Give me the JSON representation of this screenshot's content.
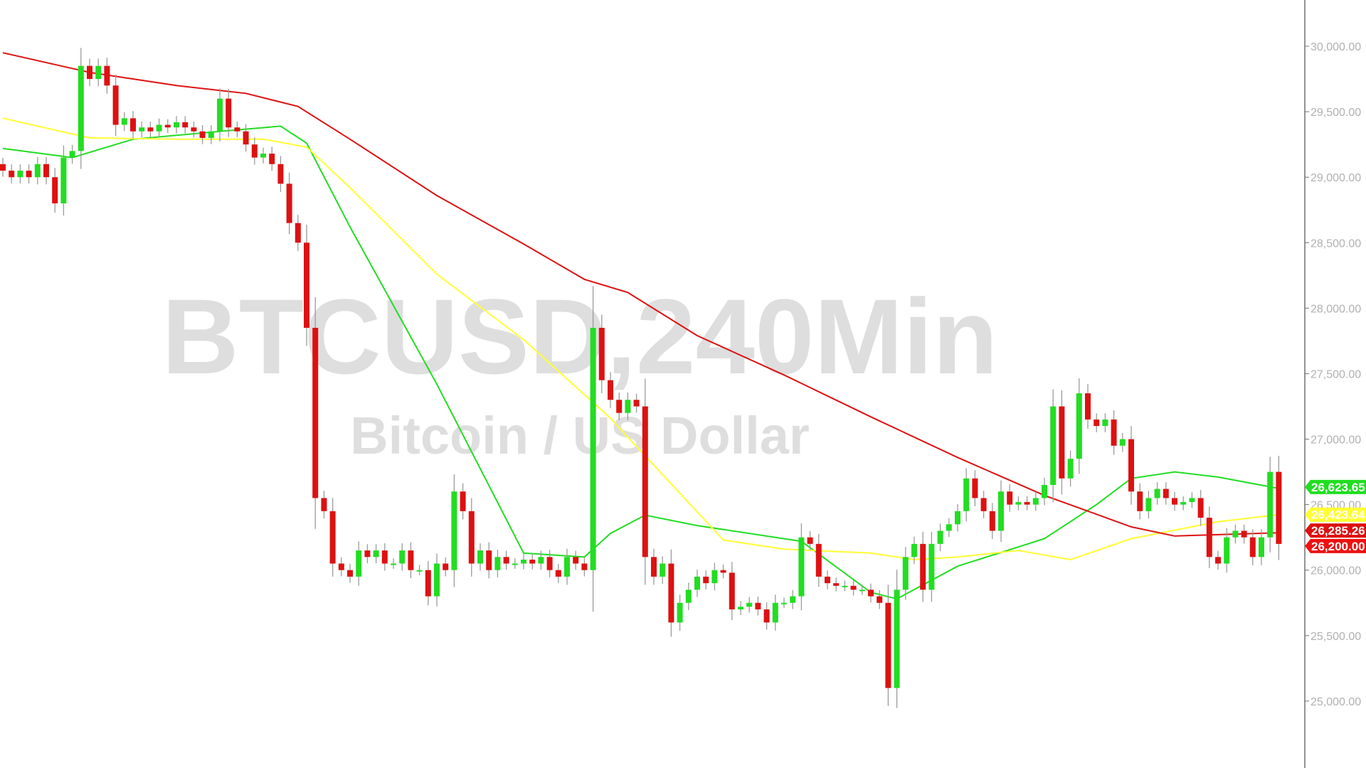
{
  "chart_data": {
    "type": "candlestick",
    "watermark": {
      "symbol": "BTCUSD,240Min",
      "description": "Bitcoin / US Dollar"
    },
    "ylim": [
      24489,
      30353
    ],
    "y_ticks": [
      25000,
      25500,
      26000,
      26500,
      27000,
      27500,
      28000,
      28500,
      29000,
      29500,
      30000
    ],
    "y_tick_labels": [
      "25,000.00",
      "25,500.00",
      "26,000.00",
      "26,500.00",
      "27,000.00",
      "27,500.00",
      "28,000.00",
      "28,500.00",
      "29,000.00",
      "29,500.00",
      "30,000.00"
    ],
    "grid": false,
    "first_open": 29100,
    "close": [
      29050,
      29000,
      29050,
      29000,
      29100,
      29000,
      28800,
      29150,
      29200,
      29850,
      29750,
      29850,
      29700,
      29400,
      29450,
      29350,
      29380,
      29350,
      29400,
      29380,
      29420,
      29380,
      29350,
      29300,
      29350,
      29600,
      29380,
      29350,
      29250,
      29150,
      29180,
      29100,
      28950,
      28650,
      28500,
      27850,
      26550,
      26450,
      26050,
      26000,
      25950,
      26150,
      26100,
      26150,
      26050,
      26050,
      26150,
      26000,
      26000,
      25800,
      26050,
      26000,
      26600,
      26450,
      26050,
      26150,
      26000,
      26100,
      26050,
      26050,
      26080,
      26050,
      26100,
      26000,
      25950,
      26100,
      26050,
      26000,
      27850,
      27450,
      27300,
      27200,
      27300,
      27250,
      26100,
      25950,
      26050,
      25600,
      25750,
      25850,
      25950,
      25900,
      26000,
      25980,
      25700,
      25720,
      25750,
      25700,
      25600,
      25750,
      25750,
      25800,
      26250,
      26200,
      25950,
      25900,
      25880,
      25880,
      25850,
      25850,
      25800,
      25750,
      25100,
      25850,
      26100,
      26200,
      25850,
      26200,
      26300,
      26350,
      26450,
      26700,
      26550,
      26450,
      26300,
      26600,
      26500,
      26520,
      26500,
      26550,
      26650,
      27250,
      26700,
      26850,
      27350,
      27150,
      27100,
      27150,
      26950,
      27000,
      26600,
      26450,
      26550,
      26620,
      26550,
      26500,
      26520,
      26550,
      26400,
      26100,
      26050,
      26250,
      26300,
      26250,
      26100,
      26250,
      26750,
      26200
    ],
    "moving_averages": [
      {
        "color": "#22dd22",
        "points": [
          [
            0,
            29220
          ],
          [
            8,
            29150
          ],
          [
            15,
            29290
          ],
          [
            25,
            29350
          ],
          [
            32,
            29390
          ],
          [
            35,
            29260
          ],
          [
            40,
            28620
          ],
          [
            50,
            27420
          ],
          [
            60,
            26130
          ],
          [
            67,
            26100
          ],
          [
            70,
            26280
          ],
          [
            74,
            26420
          ],
          [
            80,
            26340
          ],
          [
            92,
            26220
          ],
          [
            100,
            25830
          ],
          [
            103,
            25780
          ],
          [
            110,
            26030
          ],
          [
            120,
            26240
          ],
          [
            126,
            26500
          ],
          [
            130,
            26700
          ],
          [
            135,
            26750
          ],
          [
            140,
            26710
          ],
          [
            147,
            26623.65
          ]
        ],
        "last_label": "26,623.65"
      },
      {
        "color": "#ffff33",
        "points": [
          [
            0,
            29450
          ],
          [
            10,
            29300
          ],
          [
            20,
            29290
          ],
          [
            30,
            29290
          ],
          [
            35,
            29230
          ],
          [
            40,
            28920
          ],
          [
            50,
            28260
          ],
          [
            60,
            27760
          ],
          [
            70,
            27160
          ],
          [
            76,
            26730
          ],
          [
            83,
            26230
          ],
          [
            90,
            26160
          ],
          [
            100,
            26130
          ],
          [
            105,
            26080
          ],
          [
            110,
            26100
          ],
          [
            117,
            26150
          ],
          [
            123,
            26080
          ],
          [
            130,
            26240
          ],
          [
            140,
            26370
          ],
          [
            147,
            26423.64
          ]
        ],
        "last_label": "26,423.64"
      },
      {
        "color": "#dd1111",
        "points": [
          [
            0,
            29950
          ],
          [
            10,
            29800
          ],
          [
            20,
            29700
          ],
          [
            28,
            29640
          ],
          [
            34,
            29540
          ],
          [
            40,
            29290
          ],
          [
            50,
            28860
          ],
          [
            60,
            28490
          ],
          [
            67,
            28220
          ],
          [
            72,
            28120
          ],
          [
            80,
            27790
          ],
          [
            90,
            27490
          ],
          [
            100,
            27170
          ],
          [
            110,
            26860
          ],
          [
            120,
            26570
          ],
          [
            130,
            26330
          ],
          [
            135,
            26260
          ],
          [
            147,
            26285.26
          ]
        ],
        "last_label": "26,285.26"
      }
    ],
    "last_price": {
      "value": 26200,
      "label": "26,200.00",
      "color": "#ee1111"
    },
    "colors": {
      "up": "#22dd22",
      "down": "#dd1111",
      "wick": "#9a9a9a",
      "axis": "#707070"
    }
  }
}
